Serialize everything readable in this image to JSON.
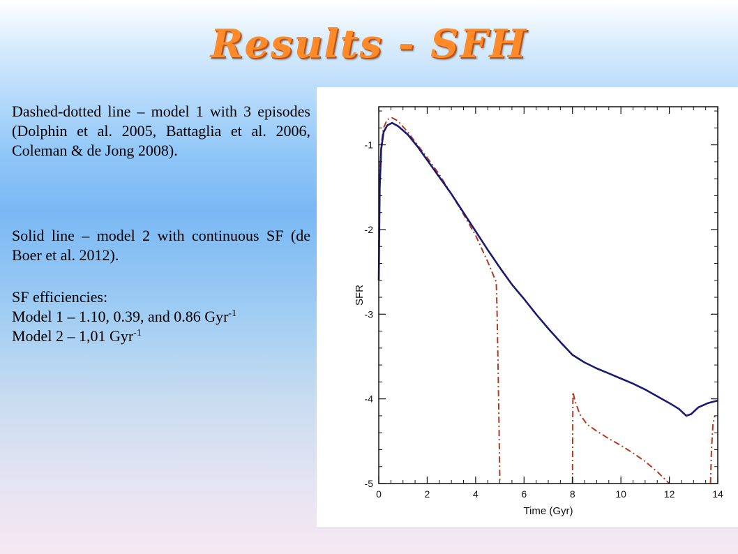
{
  "slide": {
    "title": "Results - SFH",
    "para1": "Dashed-dotted line – model 1 with 3 episodes (Dolphin et al. 2005, Battaglia et al. 2006, Coleman & de Jong 2008).",
    "para2": "Solid line – model 2 with continuous SF (de Boer et al. 2012).",
    "eff_heading": "SF efficiencies:",
    "eff_model1": "Model 1 – 1.10, 0.39, and 0.86 Gyr",
    "eff_model1_sup": "-1",
    "eff_model2": "Model 2 – 1,01 Gyr",
    "eff_model2_sup": "-1"
  },
  "chart_data": {
    "type": "line",
    "xlabel": "Time (Gyr)",
    "ylabel": "SFR",
    "xlim": [
      0,
      14
    ],
    "ylim": [
      -5,
      -0.55
    ],
    "xticks": [
      0,
      2,
      4,
      6,
      8,
      10,
      12,
      14
    ],
    "yticks": [
      -5,
      -4,
      -3,
      -2,
      -1
    ],
    "colors": {
      "model1": "#b03a20",
      "model2": "#1a1a6e"
    },
    "series": [
      {
        "style": "dash-dot",
        "segments": [
          [
            [
              0.0,
              -2.2
            ],
            [
              0.03,
              -1.4
            ],
            [
              0.1,
              -1.0
            ],
            [
              0.2,
              -0.8
            ],
            [
              0.35,
              -0.7
            ],
            [
              0.55,
              -0.68
            ],
            [
              0.8,
              -0.72
            ],
            [
              1.2,
              -0.85
            ],
            [
              1.6,
              -1.0
            ],
            [
              2.0,
              -1.15
            ],
            [
              2.5,
              -1.35
            ],
            [
              3.0,
              -1.58
            ],
            [
              3.5,
              -1.82
            ],
            [
              4.0,
              -2.07
            ],
            [
              4.5,
              -2.38
            ],
            [
              4.85,
              -2.62
            ],
            [
              4.88,
              -2.9
            ],
            [
              4.92,
              -3.5
            ],
            [
              4.96,
              -4.2
            ],
            [
              5.0,
              -5.0
            ]
          ],
          [
            [
              8.0,
              -5.0
            ],
            [
              8.01,
              -4.3
            ],
            [
              8.02,
              -3.92
            ],
            [
              8.1,
              -4.02
            ],
            [
              8.3,
              -4.18
            ],
            [
              8.6,
              -4.3
            ],
            [
              9.0,
              -4.38
            ],
            [
              9.5,
              -4.47
            ],
            [
              10.0,
              -4.55
            ],
            [
              10.5,
              -4.64
            ],
            [
              11.0,
              -4.74
            ],
            [
              11.5,
              -4.86
            ],
            [
              12.0,
              -5.0
            ]
          ],
          [
            [
              13.7,
              -5.0
            ],
            [
              13.74,
              -4.6
            ],
            [
              13.8,
              -4.3
            ],
            [
              13.88,
              -4.2
            ]
          ]
        ]
      },
      {
        "style": "solid",
        "segments": [
          [
            [
              0.0,
              -2.6
            ],
            [
              0.04,
              -1.5
            ],
            [
              0.1,
              -1.05
            ],
            [
              0.2,
              -0.85
            ],
            [
              0.35,
              -0.77
            ],
            [
              0.55,
              -0.74
            ],
            [
              0.8,
              -0.78
            ],
            [
              1.2,
              -0.88
            ],
            [
              1.6,
              -1.02
            ],
            [
              2.0,
              -1.18
            ],
            [
              2.5,
              -1.38
            ],
            [
              3.0,
              -1.58
            ],
            [
              3.5,
              -1.8
            ],
            [
              4.0,
              -2.02
            ],
            [
              4.5,
              -2.24
            ],
            [
              5.0,
              -2.45
            ],
            [
              5.5,
              -2.65
            ],
            [
              6.0,
              -2.82
            ],
            [
              6.5,
              -3.0
            ],
            [
              7.0,
              -3.17
            ],
            [
              7.5,
              -3.33
            ],
            [
              8.0,
              -3.48
            ],
            [
              8.5,
              -3.57
            ],
            [
              9.0,
              -3.64
            ],
            [
              9.5,
              -3.7
            ],
            [
              10.0,
              -3.76
            ],
            [
              10.5,
              -3.82
            ],
            [
              11.0,
              -3.89
            ],
            [
              11.5,
              -3.97
            ],
            [
              12.0,
              -4.05
            ],
            [
              12.4,
              -4.12
            ],
            [
              12.7,
              -4.2
            ],
            [
              12.9,
              -4.18
            ],
            [
              13.2,
              -4.1
            ],
            [
              13.6,
              -4.05
            ],
            [
              14.0,
              -4.02
            ]
          ]
        ]
      }
    ]
  }
}
